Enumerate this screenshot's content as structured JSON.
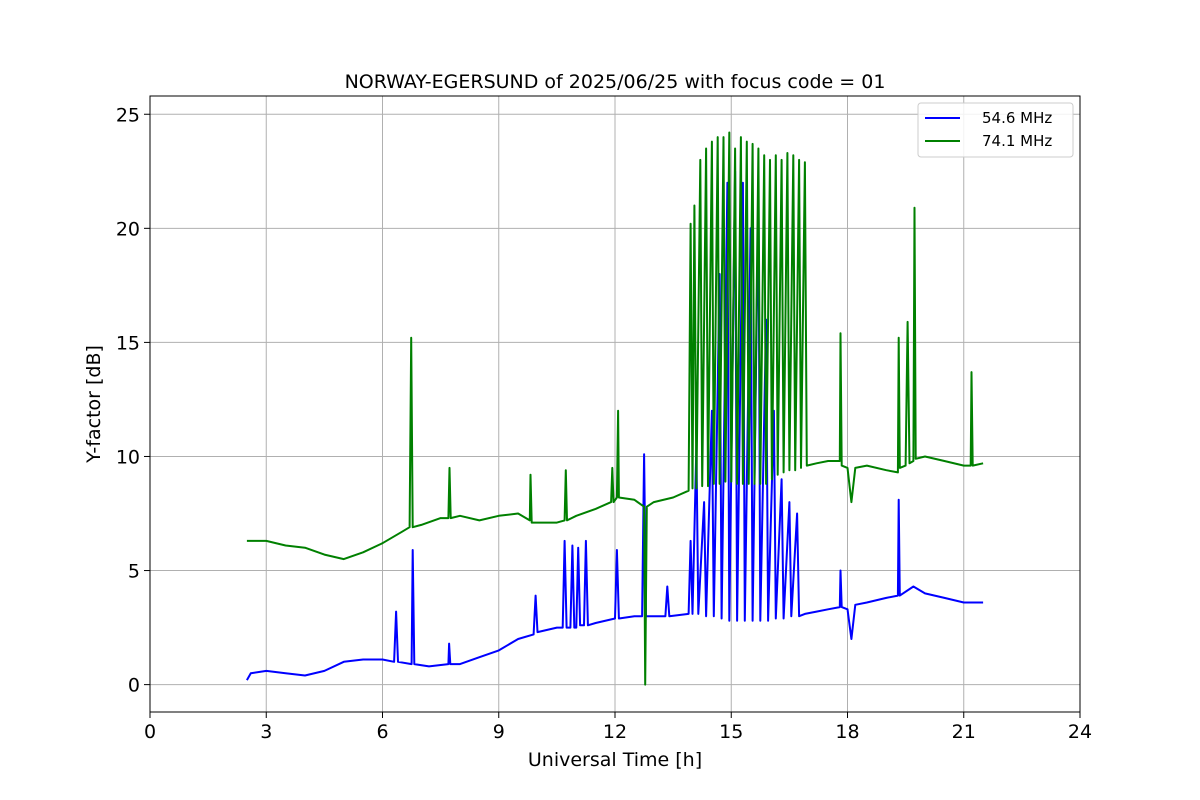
{
  "chart_data": {
    "type": "line",
    "title": "NORWAY-EGERSUND of 2025/06/25 with focus code = 01",
    "xlabel": "Universal Time [h]",
    "ylabel": "Y-factor [dB]",
    "xlim": [
      0,
      24
    ],
    "ylim": [
      -1.2,
      25.8
    ],
    "xticks": [
      0,
      3,
      6,
      9,
      12,
      15,
      18,
      21,
      24
    ],
    "yticks": [
      0,
      5,
      10,
      15,
      20,
      25
    ],
    "grid": true,
    "legend_position": "top-right",
    "series": [
      {
        "name": "54.6 MHz",
        "color": "#0000ff",
        "points": [
          [
            2.5,
            0.2
          ],
          [
            2.6,
            0.5
          ],
          [
            3.0,
            0.6
          ],
          [
            3.5,
            0.5
          ],
          [
            4.0,
            0.4
          ],
          [
            4.5,
            0.6
          ],
          [
            5.0,
            1.0
          ],
          [
            5.5,
            1.1
          ],
          [
            6.0,
            1.1
          ],
          [
            6.3,
            1.0
          ],
          [
            6.35,
            3.2
          ],
          [
            6.4,
            1.0
          ],
          [
            6.75,
            0.9
          ],
          [
            6.78,
            5.9
          ],
          [
            6.82,
            0.9
          ],
          [
            7.2,
            0.8
          ],
          [
            7.7,
            0.9
          ],
          [
            7.72,
            1.8
          ],
          [
            7.75,
            0.9
          ],
          [
            8.0,
            0.9
          ],
          [
            8.5,
            1.2
          ],
          [
            9.0,
            1.5
          ],
          [
            9.5,
            2.0
          ],
          [
            9.9,
            2.2
          ],
          [
            9.95,
            3.9
          ],
          [
            10.0,
            2.3
          ],
          [
            10.5,
            2.5
          ],
          [
            10.65,
            2.5
          ],
          [
            10.7,
            6.3
          ],
          [
            10.75,
            2.5
          ],
          [
            10.85,
            2.5
          ],
          [
            10.9,
            6.1
          ],
          [
            10.95,
            2.5
          ],
          [
            11.0,
            2.5
          ],
          [
            11.05,
            6.0
          ],
          [
            11.1,
            2.6
          ],
          [
            11.2,
            2.6
          ],
          [
            11.25,
            6.3
          ],
          [
            11.3,
            2.6
          ],
          [
            11.5,
            2.7
          ],
          [
            12.0,
            2.9
          ],
          [
            12.05,
            5.9
          ],
          [
            12.1,
            2.9
          ],
          [
            12.5,
            3.0
          ],
          [
            12.7,
            3.0
          ],
          [
            12.75,
            10.1
          ],
          [
            12.8,
            3.0
          ],
          [
            13.0,
            3.0
          ],
          [
            13.3,
            3.0
          ],
          [
            13.35,
            4.3
          ],
          [
            13.4,
            3.0
          ],
          [
            13.9,
            3.1
          ],
          [
            13.95,
            6.3
          ],
          [
            14.0,
            3.1
          ],
          [
            14.1,
            10.5
          ],
          [
            14.15,
            3.1
          ],
          [
            14.3,
            8.0
          ],
          [
            14.35,
            3.0
          ],
          [
            14.5,
            12.0
          ],
          [
            14.55,
            3.0
          ],
          [
            14.7,
            18.0
          ],
          [
            14.75,
            2.9
          ],
          [
            14.9,
            22.0
          ],
          [
            14.95,
            2.8
          ],
          [
            15.1,
            22.5
          ],
          [
            15.15,
            2.8
          ],
          [
            15.3,
            22.0
          ],
          [
            15.35,
            2.8
          ],
          [
            15.5,
            20.0
          ],
          [
            15.55,
            2.8
          ],
          [
            15.7,
            21.5
          ],
          [
            15.75,
            2.8
          ],
          [
            15.9,
            16.0
          ],
          [
            15.95,
            2.8
          ],
          [
            16.1,
            12.0
          ],
          [
            16.15,
            2.9
          ],
          [
            16.3,
            9.0
          ],
          [
            16.35,
            2.9
          ],
          [
            16.5,
            8.0
          ],
          [
            16.55,
            3.0
          ],
          [
            16.7,
            7.5
          ],
          [
            16.75,
            3.0
          ],
          [
            16.9,
            3.1
          ],
          [
            17.2,
            3.2
          ],
          [
            17.5,
            3.3
          ],
          [
            17.8,
            3.4
          ],
          [
            17.82,
            5.0
          ],
          [
            17.85,
            3.4
          ],
          [
            18.0,
            3.3
          ],
          [
            18.1,
            2.0
          ],
          [
            18.2,
            3.5
          ],
          [
            18.5,
            3.6
          ],
          [
            19.0,
            3.8
          ],
          [
            19.3,
            3.9
          ],
          [
            19.32,
            8.1
          ],
          [
            19.35,
            3.9
          ],
          [
            19.7,
            4.3
          ],
          [
            20.0,
            4.0
          ],
          [
            20.5,
            3.8
          ],
          [
            21.0,
            3.6
          ],
          [
            21.5,
            3.6
          ]
        ]
      },
      {
        "name": "74.1 MHz",
        "color": "#008000",
        "points": [
          [
            2.5,
            6.3
          ],
          [
            3.0,
            6.3
          ],
          [
            3.5,
            6.1
          ],
          [
            4.0,
            6.0
          ],
          [
            4.5,
            5.7
          ],
          [
            5.0,
            5.5
          ],
          [
            5.5,
            5.8
          ],
          [
            6.0,
            6.2
          ],
          [
            6.5,
            6.7
          ],
          [
            6.7,
            6.9
          ],
          [
            6.74,
            15.2
          ],
          [
            6.78,
            6.9
          ],
          [
            7.0,
            7.0
          ],
          [
            7.5,
            7.3
          ],
          [
            7.7,
            7.3
          ],
          [
            7.73,
            9.5
          ],
          [
            7.76,
            7.3
          ],
          [
            8.0,
            7.4
          ],
          [
            8.5,
            7.2
          ],
          [
            9.0,
            7.4
          ],
          [
            9.5,
            7.5
          ],
          [
            9.8,
            7.2
          ],
          [
            9.82,
            9.2
          ],
          [
            9.85,
            7.1
          ],
          [
            10.5,
            7.1
          ],
          [
            10.7,
            7.2
          ],
          [
            10.73,
            9.4
          ],
          [
            10.76,
            7.2
          ],
          [
            11.0,
            7.4
          ],
          [
            11.5,
            7.7
          ],
          [
            11.9,
            8.0
          ],
          [
            11.93,
            9.5
          ],
          [
            11.96,
            8.0
          ],
          [
            12.05,
            8.2
          ],
          [
            12.08,
            12.0
          ],
          [
            12.1,
            8.2
          ],
          [
            12.5,
            8.1
          ],
          [
            12.75,
            7.8
          ],
          [
            12.78,
            0.0
          ],
          [
            12.82,
            7.8
          ],
          [
            13.0,
            8.0
          ],
          [
            13.5,
            8.2
          ],
          [
            13.9,
            8.5
          ],
          [
            13.95,
            20.2
          ],
          [
            14.0,
            8.6
          ],
          [
            14.05,
            21.0
          ],
          [
            14.1,
            8.6
          ],
          [
            14.2,
            23.0
          ],
          [
            14.25,
            8.7
          ],
          [
            14.35,
            23.5
          ],
          [
            14.4,
            8.7
          ],
          [
            14.5,
            23.8
          ],
          [
            14.55,
            8.8
          ],
          [
            14.65,
            24.0
          ],
          [
            14.7,
            8.8
          ],
          [
            14.8,
            24.0
          ],
          [
            14.85,
            8.9
          ],
          [
            14.95,
            24.2
          ],
          [
            15.0,
            8.9
          ],
          [
            15.1,
            23.5
          ],
          [
            15.15,
            8.8
          ],
          [
            15.25,
            24.0
          ],
          [
            15.3,
            8.8
          ],
          [
            15.4,
            23.8
          ],
          [
            15.45,
            8.8
          ],
          [
            15.55,
            23.7
          ],
          [
            15.6,
            8.8
          ],
          [
            15.7,
            23.5
          ],
          [
            15.75,
            8.8
          ],
          [
            15.85,
            23.2
          ],
          [
            15.9,
            8.8
          ],
          [
            16.0,
            23.0
          ],
          [
            16.05,
            9.0
          ],
          [
            16.15,
            23.2
          ],
          [
            16.2,
            9.2
          ],
          [
            16.3,
            23.0
          ],
          [
            16.35,
            9.3
          ],
          [
            16.45,
            23.3
          ],
          [
            16.5,
            9.4
          ],
          [
            16.6,
            23.2
          ],
          [
            16.65,
            9.4
          ],
          [
            16.75,
            23.0
          ],
          [
            16.8,
            9.5
          ],
          [
            16.9,
            22.9
          ],
          [
            16.95,
            9.6
          ],
          [
            17.2,
            9.7
          ],
          [
            17.5,
            9.8
          ],
          [
            17.8,
            9.8
          ],
          [
            17.82,
            15.4
          ],
          [
            17.85,
            9.6
          ],
          [
            18.0,
            9.5
          ],
          [
            18.1,
            8.0
          ],
          [
            18.2,
            9.5
          ],
          [
            18.5,
            9.6
          ],
          [
            19.0,
            9.4
          ],
          [
            19.3,
            9.3
          ],
          [
            19.32,
            15.2
          ],
          [
            19.35,
            9.5
          ],
          [
            19.5,
            9.6
          ],
          [
            19.55,
            15.9
          ],
          [
            19.6,
            9.7
          ],
          [
            19.7,
            9.8
          ],
          [
            19.73,
            20.9
          ],
          [
            19.76,
            9.9
          ],
          [
            20.0,
            10.0
          ],
          [
            20.5,
            9.8
          ],
          [
            21.0,
            9.6
          ],
          [
            21.18,
            9.6
          ],
          [
            21.2,
            13.7
          ],
          [
            21.23,
            9.6
          ],
          [
            21.5,
            9.7
          ]
        ]
      }
    ]
  }
}
